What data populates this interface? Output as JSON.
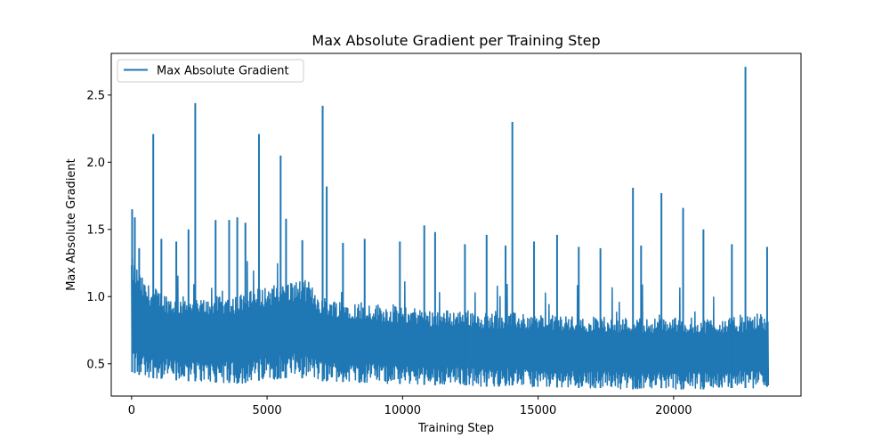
{
  "chart_data": {
    "type": "line",
    "title": "Max Absolute Gradient per Training Step",
    "xlabel": "Training Step",
    "ylabel": "Max Absolute Gradient",
    "xlim": [
      -750,
      24700
    ],
    "ylim": [
      0.26,
      2.81
    ],
    "xticks": [
      {
        "value": 0,
        "label": "0"
      },
      {
        "value": 5000,
        "label": "5000"
      },
      {
        "value": 10000,
        "label": "10000"
      },
      {
        "value": 15000,
        "label": "15000"
      },
      {
        "value": 20000,
        "label": "20000"
      }
    ],
    "yticks": [
      {
        "value": 0.5,
        "label": "0.5"
      },
      {
        "value": 1.0,
        "label": "1.0"
      },
      {
        "value": 1.5,
        "label": "1.5"
      },
      {
        "value": 2.0,
        "label": "2.0"
      },
      {
        "value": 2.5,
        "label": "2.5"
      }
    ],
    "grid": false,
    "legend": {
      "placement": "top-left"
    },
    "series": [
      {
        "name": "Max Absolute Gradient",
        "color": "#1f77b4",
        "x_step": 500,
        "lower_envelope": [
          0.44,
          0.4,
          0.39,
          0.38,
          0.37,
          0.37,
          0.36,
          0.36,
          0.35,
          0.37,
          0.38,
          0.39,
          0.4,
          0.39,
          0.37,
          0.37,
          0.36,
          0.36,
          0.36,
          0.35,
          0.35,
          0.35,
          0.34,
          0.34,
          0.34,
          0.34,
          0.33,
          0.33,
          0.34,
          0.33,
          0.33,
          0.32,
          0.33,
          0.32,
          0.32,
          0.32,
          0.31,
          0.31,
          0.32,
          0.32,
          0.31,
          0.31,
          0.31,
          0.31,
          0.32,
          0.32,
          0.32,
          0.33
        ],
        "upper_envelope": [
          1.3,
          1.1,
          1.05,
          1.0,
          1.0,
          0.98,
          1.0,
          1.0,
          1.02,
          1.05,
          1.08,
          1.1,
          1.12,
          1.12,
          1.0,
          0.98,
          0.97,
          0.95,
          0.95,
          0.93,
          0.92,
          0.92,
          0.9,
          0.9,
          0.9,
          0.9,
          0.88,
          0.88,
          0.88,
          0.87,
          0.87,
          0.86,
          0.86,
          0.85,
          0.85,
          0.85,
          0.85,
          0.84,
          0.84,
          0.84,
          0.85,
          0.84,
          0.84,
          0.84,
          0.84,
          0.85,
          0.85,
          0.85
        ],
        "peaks": [
          {
            "x": 20,
            "y": 1.65
          },
          {
            "x": 120,
            "y": 1.59
          },
          {
            "x": 280,
            "y": 1.36
          },
          {
            "x": 800,
            "y": 2.21
          },
          {
            "x": 1100,
            "y": 1.43
          },
          {
            "x": 1650,
            "y": 1.41
          },
          {
            "x": 2100,
            "y": 1.5
          },
          {
            "x": 2350,
            "y": 2.44
          },
          {
            "x": 3100,
            "y": 1.57
          },
          {
            "x": 3600,
            "y": 1.57
          },
          {
            "x": 3900,
            "y": 1.59
          },
          {
            "x": 4200,
            "y": 1.55
          },
          {
            "x": 4700,
            "y": 2.21
          },
          {
            "x": 5500,
            "y": 2.05
          },
          {
            "x": 5700,
            "y": 1.58
          },
          {
            "x": 6300,
            "y": 1.42
          },
          {
            "x": 7050,
            "y": 2.42
          },
          {
            "x": 7200,
            "y": 1.82
          },
          {
            "x": 7800,
            "y": 1.4
          },
          {
            "x": 8600,
            "y": 1.43
          },
          {
            "x": 9900,
            "y": 1.41
          },
          {
            "x": 10800,
            "y": 1.53
          },
          {
            "x": 11200,
            "y": 1.48
          },
          {
            "x": 12300,
            "y": 1.39
          },
          {
            "x": 13100,
            "y": 1.46
          },
          {
            "x": 13800,
            "y": 1.38
          },
          {
            "x": 14050,
            "y": 2.3
          },
          {
            "x": 14850,
            "y": 1.41
          },
          {
            "x": 15700,
            "y": 1.46
          },
          {
            "x": 16500,
            "y": 1.37
          },
          {
            "x": 17300,
            "y": 1.36
          },
          {
            "x": 18500,
            "y": 1.81
          },
          {
            "x": 18800,
            "y": 1.38
          },
          {
            "x": 19550,
            "y": 1.77
          },
          {
            "x": 20350,
            "y": 1.66
          },
          {
            "x": 21100,
            "y": 1.5
          },
          {
            "x": 22150,
            "y": 1.39
          },
          {
            "x": 22650,
            "y": 2.71
          },
          {
            "x": 23450,
            "y": 1.37
          }
        ],
        "x_end": 23500
      }
    ]
  }
}
